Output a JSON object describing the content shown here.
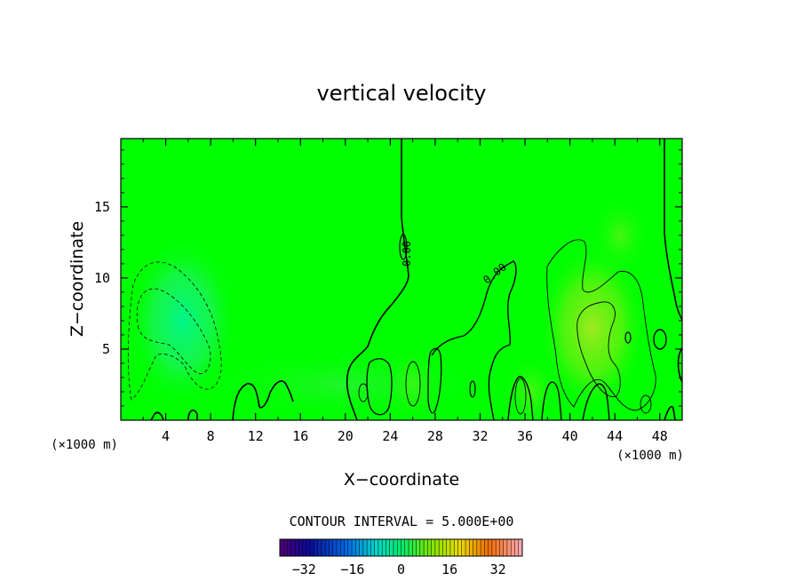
{
  "chart_data": {
    "type": "heatmap",
    "title": "vertical velocity",
    "xlabel": "X−coordinate",
    "ylabel": "Z−coordinate",
    "x_unit": "(×1000 m)",
    "y_unit": "(×1000 m)",
    "xlim": [
      0,
      50
    ],
    "ylim": [
      0,
      19.8
    ],
    "x_ticks": [
      "4",
      "8",
      "12",
      "16",
      "20",
      "24",
      "28",
      "32",
      "36",
      "40",
      "44",
      "48"
    ],
    "y_ticks": [
      "5",
      "10",
      "15"
    ],
    "contour_interval_text": "CONTOUR INTERVAL = 5.000E+00",
    "contour_labels": [
      "0.00",
      "0.00"
    ],
    "colorbar": {
      "range": [
        -40,
        40
      ],
      "tick_labels": [
        "−32",
        "−16",
        "0",
        "16",
        "32"
      ],
      "tick_values": [
        -32,
        -16,
        0,
        16,
        32
      ]
    },
    "field_features": [
      {
        "kind": "min",
        "x": 5.5,
        "z": 7.0,
        "value": -8
      },
      {
        "kind": "max",
        "x": 42.0,
        "z": 6.5,
        "value": 8
      },
      {
        "kind": "max",
        "x": 44.5,
        "z": 13.0,
        "value": 4
      },
      {
        "kind": "max",
        "x": 26.0,
        "z": 2.5,
        "value": 5
      },
      {
        "kind": "max",
        "x": 36.5,
        "z": 2.0,
        "value": 5
      }
    ]
  },
  "colors": {
    "background": "#00ff00",
    "frame": "#000000"
  }
}
